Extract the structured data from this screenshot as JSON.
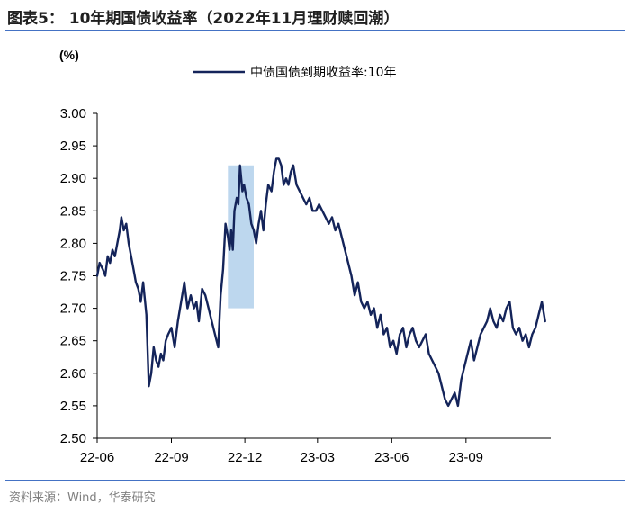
{
  "figure": {
    "title": "图表5： 10年期国债收益率（2022年11月理财赎回潮）",
    "source": "资料来源：Wind，华泰研究"
  },
  "colors": {
    "line": "#14245a",
    "highlight": "#bdd7ee",
    "rule": "#4472c4",
    "axis": "#000000"
  },
  "chart_data": {
    "type": "line",
    "title": "",
    "ylabel": "(%)",
    "xlabel": "",
    "ylim": [
      2.5,
      3.0
    ],
    "yticks": [
      "3.00",
      "2.95",
      "2.90",
      "2.85",
      "2.80",
      "2.75",
      "2.70",
      "2.65",
      "2.60",
      "2.55",
      "2.50"
    ],
    "xticks": [
      "22-06",
      "22-09",
      "22-12",
      "23-03",
      "23-06",
      "23-09"
    ],
    "xlim": [
      "2022-06-01",
      "2023-12-15"
    ],
    "legend": "top-center",
    "grid": false,
    "highlight_range": {
      "x_start": "2022-11-10",
      "x_end": "2022-12-12",
      "y_start": 2.7,
      "y_end": 2.92
    },
    "series": [
      {
        "name": "中债国债到期收益率:10年",
        "x": [
          "2022-06-01",
          "2022-06-04",
          "2022-06-08",
          "2022-06-11",
          "2022-06-14",
          "2022-06-17",
          "2022-06-20",
          "2022-06-23",
          "2022-06-26",
          "2022-06-29",
          "2022-07-01",
          "2022-07-04",
          "2022-07-07",
          "2022-07-10",
          "2022-07-13",
          "2022-07-16",
          "2022-07-19",
          "2022-07-22",
          "2022-07-25",
          "2022-07-28",
          "2022-08-01",
          "2022-08-04",
          "2022-08-07",
          "2022-08-10",
          "2022-08-13",
          "2022-08-16",
          "2022-08-19",
          "2022-08-22",
          "2022-08-25",
          "2022-08-28",
          "2022-09-01",
          "2022-09-05",
          "2022-09-09",
          "2022-09-13",
          "2022-09-17",
          "2022-09-21",
          "2022-09-25",
          "2022-09-29",
          "2022-10-02",
          "2022-10-05",
          "2022-10-09",
          "2022-10-13",
          "2022-10-17",
          "2022-10-21",
          "2022-10-25",
          "2022-10-29",
          "2022-11-01",
          "2022-11-04",
          "2022-11-07",
          "2022-11-10",
          "2022-11-12",
          "2022-11-14",
          "2022-11-16",
          "2022-11-18",
          "2022-11-21",
          "2022-11-23",
          "2022-11-25",
          "2022-11-28",
          "2022-11-30",
          "2022-12-03",
          "2022-12-06",
          "2022-12-09",
          "2022-12-12",
          "2022-12-15",
          "2022-12-18",
          "2022-12-21",
          "2022-12-24",
          "2022-12-27",
          "2022-12-30",
          "2023-01-03",
          "2023-01-06",
          "2023-01-09",
          "2023-01-12",
          "2023-01-15",
          "2023-01-18",
          "2023-01-21",
          "2023-01-24",
          "2023-01-27",
          "2023-01-30",
          "2023-02-03",
          "2023-02-07",
          "2023-02-11",
          "2023-02-15",
          "2023-02-19",
          "2023-02-23",
          "2023-02-27",
          "2023-03-03",
          "2023-03-07",
          "2023-03-11",
          "2023-03-15",
          "2023-03-19",
          "2023-03-23",
          "2023-03-27",
          "2023-03-31",
          "2023-04-04",
          "2023-04-08",
          "2023-04-12",
          "2023-04-16",
          "2023-04-20",
          "2023-04-24",
          "2023-04-28",
          "2023-05-02",
          "2023-05-06",
          "2023-05-10",
          "2023-05-14",
          "2023-05-18",
          "2023-05-22",
          "2023-05-26",
          "2023-05-30",
          "2023-06-03",
          "2023-06-07",
          "2023-06-11",
          "2023-06-15",
          "2023-06-19",
          "2023-06-23",
          "2023-06-27",
          "2023-07-01",
          "2023-07-05",
          "2023-07-09",
          "2023-07-13",
          "2023-07-17",
          "2023-07-21",
          "2023-07-25",
          "2023-07-29",
          "2023-08-02",
          "2023-08-06",
          "2023-08-10",
          "2023-08-14",
          "2023-08-18",
          "2023-08-22",
          "2023-08-26",
          "2023-08-30",
          "2023-09-03",
          "2023-09-07",
          "2023-09-11",
          "2023-09-15",
          "2023-09-19",
          "2023-09-23",
          "2023-09-27",
          "2023-10-01",
          "2023-10-05",
          "2023-10-09",
          "2023-10-13",
          "2023-10-17",
          "2023-10-21",
          "2023-10-25",
          "2023-10-29",
          "2023-11-02",
          "2023-11-06",
          "2023-11-10",
          "2023-11-14",
          "2023-11-18",
          "2023-11-22",
          "2023-11-26",
          "2023-11-30",
          "2023-12-04",
          "2023-12-08"
        ],
        "y": [
          2.75,
          2.77,
          2.76,
          2.75,
          2.78,
          2.77,
          2.79,
          2.78,
          2.8,
          2.82,
          2.84,
          2.82,
          2.83,
          2.8,
          2.78,
          2.76,
          2.74,
          2.73,
          2.71,
          2.74,
          2.69,
          2.58,
          2.6,
          2.64,
          2.62,
          2.61,
          2.63,
          2.62,
          2.65,
          2.66,
          2.67,
          2.64,
          2.68,
          2.71,
          2.74,
          2.7,
          2.72,
          2.7,
          2.71,
          2.68,
          2.73,
          2.72,
          2.7,
          2.68,
          2.66,
          2.64,
          2.72,
          2.76,
          2.83,
          2.81,
          2.79,
          2.82,
          2.79,
          2.85,
          2.87,
          2.86,
          2.92,
          2.88,
          2.89,
          2.87,
          2.86,
          2.83,
          2.82,
          2.8,
          2.83,
          2.85,
          2.82,
          2.86,
          2.89,
          2.88,
          2.91,
          2.93,
          2.93,
          2.92,
          2.89,
          2.9,
          2.89,
          2.91,
          2.92,
          2.89,
          2.88,
          2.87,
          2.86,
          2.87,
          2.85,
          2.85,
          2.86,
          2.85,
          2.84,
          2.83,
          2.84,
          2.82,
          2.83,
          2.81,
          2.79,
          2.77,
          2.75,
          2.72,
          2.74,
          2.71,
          2.7,
          2.71,
          2.69,
          2.7,
          2.67,
          2.69,
          2.66,
          2.67,
          2.64,
          2.65,
          2.63,
          2.66,
          2.67,
          2.64,
          2.66,
          2.67,
          2.65,
          2.64,
          2.65,
          2.66,
          2.63,
          2.62,
          2.61,
          2.6,
          2.58,
          2.56,
          2.55,
          2.56,
          2.57,
          2.55,
          2.59,
          2.61,
          2.63,
          2.65,
          2.62,
          2.64,
          2.66,
          2.67,
          2.68,
          2.7,
          2.68,
          2.67,
          2.69,
          2.68,
          2.7,
          2.71,
          2.67,
          2.66,
          2.67,
          2.65,
          2.66,
          2.64,
          2.66,
          2.67,
          2.69,
          2.71,
          2.68
        ]
      }
    ]
  }
}
